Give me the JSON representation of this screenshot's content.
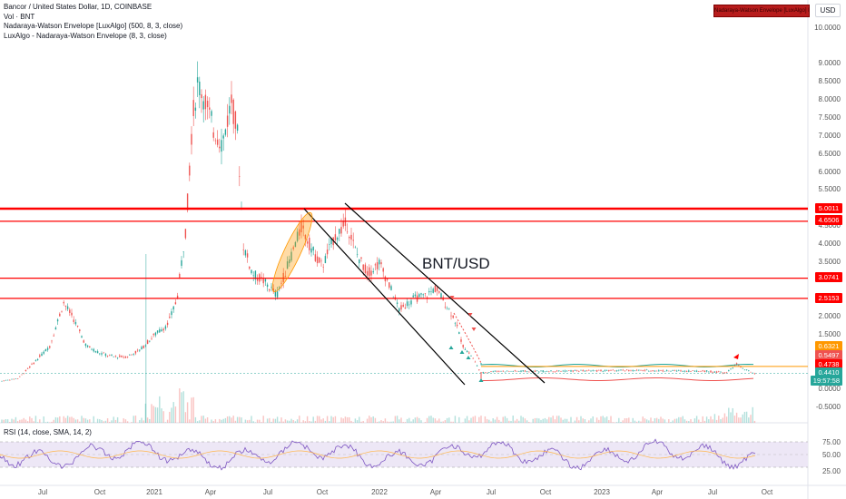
{
  "header": {
    "symbol_line": "Bancor / United States Dollar, 1D, COINBASE",
    "volume_line": "Vol · BNT",
    "indicator_1": "Nadaraya-Watson Envelope [LuxAlgo] (500, 8, 3, close)",
    "indicator_2": "LuxAlgo - Nadaraya-Watson Envelope (8, 3, close)"
  },
  "currency_button": "USD",
  "indicator_badge": "Nadaraya-Watson Envelope [LuxAlgo] Repaints",
  "annotation": "BNT/USD",
  "rsi_legend": "RSI (14, close, SMA, 14, 2)",
  "colors": {
    "up": "#26a69a",
    "down": "#ef5350",
    "level": "#ff0000",
    "envelope_upper": "#ff9800",
    "rsi_line": "#7e57c2",
    "rsi_band": "#ede7f6"
  },
  "price_axis": [
    "10.0000",
    "9.0000",
    "8.5000",
    "8.0000",
    "7.5000",
    "7.0000",
    "6.5000",
    "6.0000",
    "5.5000",
    "4.5000",
    "4.0000",
    "3.5000",
    "3.0000",
    "2.5000",
    "2.0000",
    "1.5000",
    "1.0000",
    "0.5000",
    "0.0000",
    "-0.5000"
  ],
  "rsi_axis": [
    "75.00",
    "50.00",
    "25.00"
  ],
  "time_axis": [
    "Jul",
    "Oct",
    "2021",
    "Apr",
    "Jul",
    "Oct",
    "2022",
    "Apr",
    "Jul",
    "Oct",
    "2023",
    "Apr",
    "Jul",
    "Oct"
  ],
  "price_tags": [
    {
      "label": "5.0011",
      "color": "#ff0000"
    },
    {
      "label": "4.6506",
      "color": "#ff0000"
    },
    {
      "label": "3.0741",
      "color": "#ff0000"
    },
    {
      "label": "2.5153",
      "color": "#ff0000"
    },
    {
      "label": "0.6321",
      "color": "#ff9800"
    },
    {
      "label": "0.5497",
      "color": "#ef5350"
    },
    {
      "label": "0.4738",
      "color": "#ff0000"
    },
    {
      "label": "0.4410",
      "color": "#26a69a"
    },
    {
      "label": "19:57:58",
      "color": "#26a69a"
    }
  ]
}
